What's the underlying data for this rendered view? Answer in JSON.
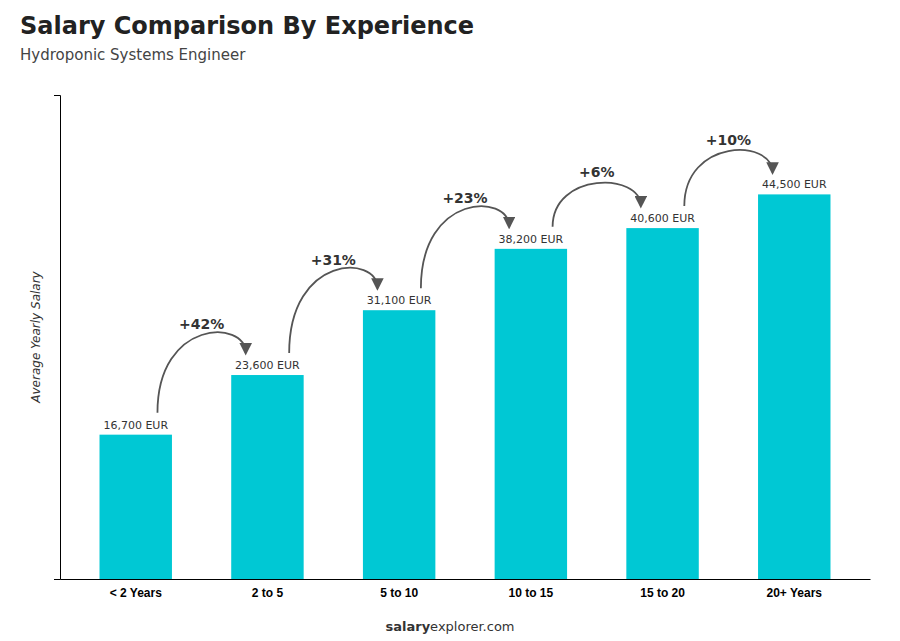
{
  "chart_data": {
    "type": "bar",
    "title": "Salary Comparison By Experience",
    "subtitle": "Hydroponic Systems Engineer",
    "ylabel": "Average Yearly Salary",
    "categories": [
      "< 2 Years",
      "2 to 5",
      "5 to 10",
      "10 to 15",
      "15 to 20",
      "20+ Years"
    ],
    "values": [
      16700,
      23600,
      31100,
      38200,
      40600,
      44500
    ],
    "value_labels": [
      "16,700 EUR",
      "23,600 EUR",
      "31,100 EUR",
      "38,200 EUR",
      "40,600 EUR",
      "44,500 EUR"
    ],
    "data_labels": true,
    "color": "#00c8d4",
    "ylim": [
      0,
      56000
    ],
    "tick_labels": "x",
    "annotations": [
      "+42%",
      "+31%",
      "+23%",
      "+6%",
      "+10%"
    ],
    "footer": [
      "salary",
      "explorer.com"
    ]
  }
}
